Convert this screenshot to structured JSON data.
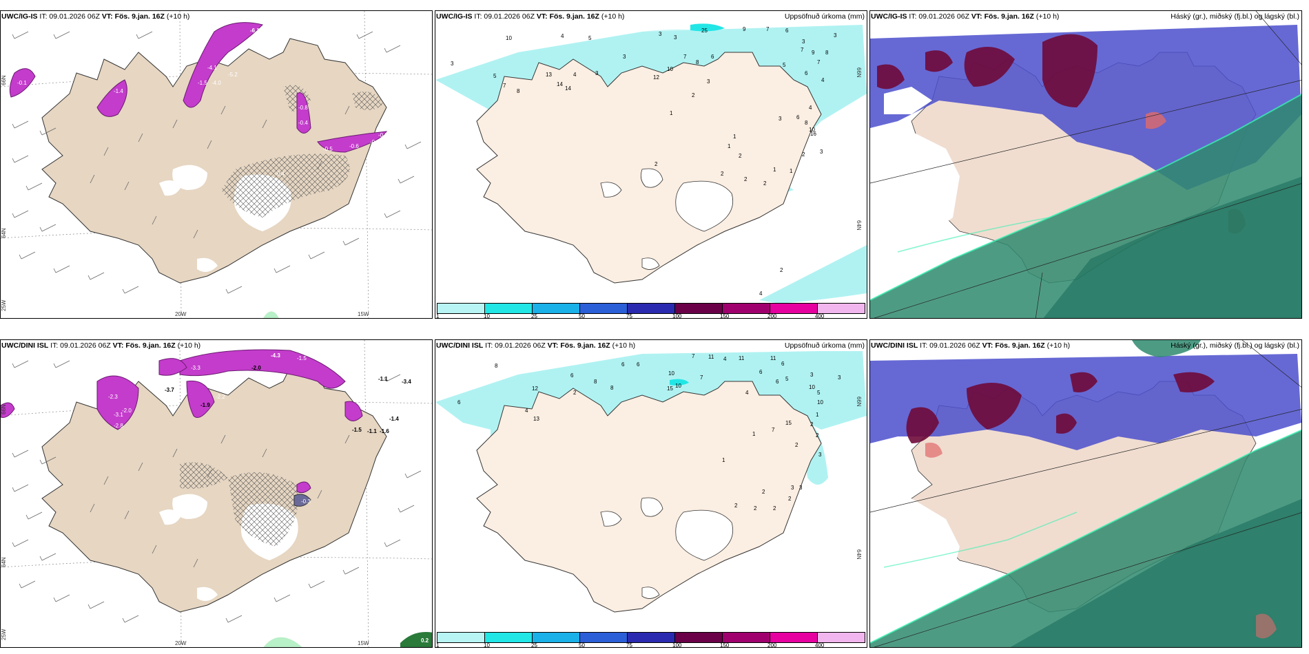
{
  "rows": [
    {
      "model": "UWC/IG-IS",
      "wind_panel": {
        "model_label": "UWC/IG-IS",
        "it_text": " IT: 09.01.2026 06Z ",
        "vt_label": "VT: Fös. 9.jan. 16Z",
        "lead": " (+10 h)",
        "labels": [
          "-6.1",
          "-3.0",
          "-4.1",
          "-1.5",
          "-5.2",
          "-4.0",
          "-1.4",
          "-0.1",
          "-0.8",
          "-0.4",
          "-0.5",
          "-0.6",
          "-0.5",
          "-0.7",
          "-0.4"
        ],
        "lat_labels": [
          "66N",
          "64N"
        ],
        "lon_labels": [
          "25W",
          "20W",
          "15W"
        ]
      },
      "precip_panel": {
        "model_label": "UWC/IG-IS",
        "it_text": " IT: 09.01.2026 06Z ",
        "vt_label": "VT: Fös. 9.jan. 16Z",
        "lead": " (+10 h)",
        "right_title": "Uppsöfnuð úrkoma (mm)",
        "values": [
          "3",
          "10",
          "4",
          "5",
          "3",
          "3",
          "25",
          "9",
          "7",
          "6",
          "3",
          "3",
          "7",
          "9",
          "8",
          "7",
          "5",
          "6",
          "4",
          "5",
          "13",
          "4",
          "3",
          "3",
          "12",
          "10",
          "7",
          "6",
          "8",
          "2",
          "3",
          "14",
          "14",
          "7",
          "8",
          "1",
          "2",
          "1",
          "3",
          "6",
          "4",
          "8",
          "10",
          "16",
          "1",
          "1",
          "2",
          "3",
          "2",
          "1",
          "2",
          "2",
          "2",
          "2",
          "4"
        ],
        "lat_labels": [
          "66N",
          "64N"
        ]
      },
      "cloud_panel": {
        "model_label": "UWC/IG-IS",
        "it_text": " IT: 09.01.2026 06Z ",
        "vt_label": "VT: Fös. 9.jan. 16Z",
        "lead": " (+10 h)",
        "right_title": "Háský (gr.), miðský (fj.bl.) og lágský (bl.)"
      }
    },
    {
      "model": "UWC/DINI ISL",
      "wind_panel": {
        "model_label": "UWC/DINI ISL",
        "it_text": " IT: 09.01.2026 06Z ",
        "vt_label": "VT: Fös. 9.jan. 16Z",
        "lead": " (+10 h)",
        "labels": [
          "-4.3",
          "-2.0",
          "-1.5",
          "-2.0",
          "-3.3",
          "-2.3",
          "-1.1",
          "-3.4",
          "-3.7",
          "-2.2",
          "-1.9",
          "-2.3",
          "-3.1",
          "-2.0",
          "-2.8",
          "-1.4",
          "-1.5",
          "-1.1",
          "-1.6",
          "-0.3",
          "0.2"
        ],
        "lat_labels": [
          "66N",
          "64N"
        ],
        "lon_labels": [
          "25W",
          "20W",
          "15W"
        ]
      },
      "precip_panel": {
        "model_label": "UWC/DINI ISL",
        "it_text": " IT: 09.01.2026 06Z ",
        "vt_label": "VT: Fös. 9.jan. 16Z",
        "lead": " (+10 h)",
        "right_title": "Uppsöfnuð úrkoma (mm)",
        "values": [
          "8",
          "6",
          "6",
          "8",
          "7",
          "10",
          "11",
          "4",
          "11",
          "6",
          "2",
          "6",
          "8",
          "6",
          "10",
          "10",
          "7",
          "6",
          "5",
          "3",
          "12",
          "4",
          "15",
          "11",
          "13",
          "6",
          "3",
          "5",
          "10",
          "4",
          "1",
          "7",
          "15",
          "2",
          "1",
          "2",
          "2",
          "3",
          "1",
          "2",
          "2",
          "3",
          "2",
          "2",
          "3",
          "2"
        ],
        "lat_labels": [
          "66N",
          "64N"
        ]
      },
      "cloud_panel": {
        "model_label": "UWC/DINI ISL",
        "it_text": " IT: 09.01.2026 06Z ",
        "vt_label": "VT: Fös. 9.jan. 16Z",
        "lead": " (+10 h)",
        "right_title": "Háský (gr.), miðský (fj.bl.) og lágský (bl.)"
      }
    }
  ],
  "colorbar": {
    "ticks": [
      "1",
      "10",
      "25",
      "50",
      "75",
      "100",
      "150",
      "200",
      "400"
    ],
    "colors": [
      "#b8f4f4",
      "#22e6e6",
      "#1ab0e8",
      "#2b5fd8",
      "#2a2ab0",
      "#6a0048",
      "#a0006e",
      "#e600a0",
      "#f2b6ee"
    ]
  },
  "colors": {
    "land": "#f2e6d8",
    "land_wind": "#e6d6c2",
    "precip": "#b0f2f2",
    "high_cloud": "#6e0a3a",
    "mid_cloud": "#4b4fcc",
    "low_cloud": "#2f8a6e",
    "snow": "#c43ccc"
  }
}
